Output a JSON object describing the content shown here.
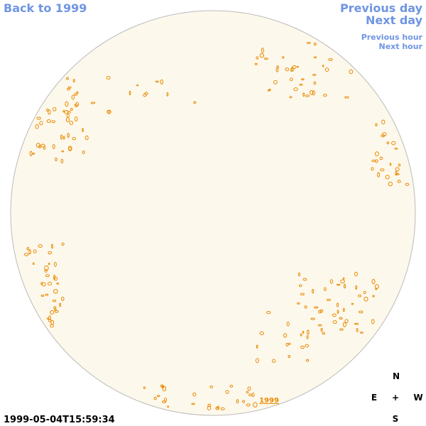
{
  "header": {
    "back": "Back to 1999",
    "previous_day": "Previous day",
    "next_day": "Next day",
    "previous_hour": "Previous hour",
    "next_hour": "Next hour"
  },
  "timestamp": "1999-05-04T15:59:34",
  "disk_label": "1999",
  "compass": {
    "north": "N",
    "east": "E",
    "center": "+",
    "west": "W",
    "south": "S"
  }
}
